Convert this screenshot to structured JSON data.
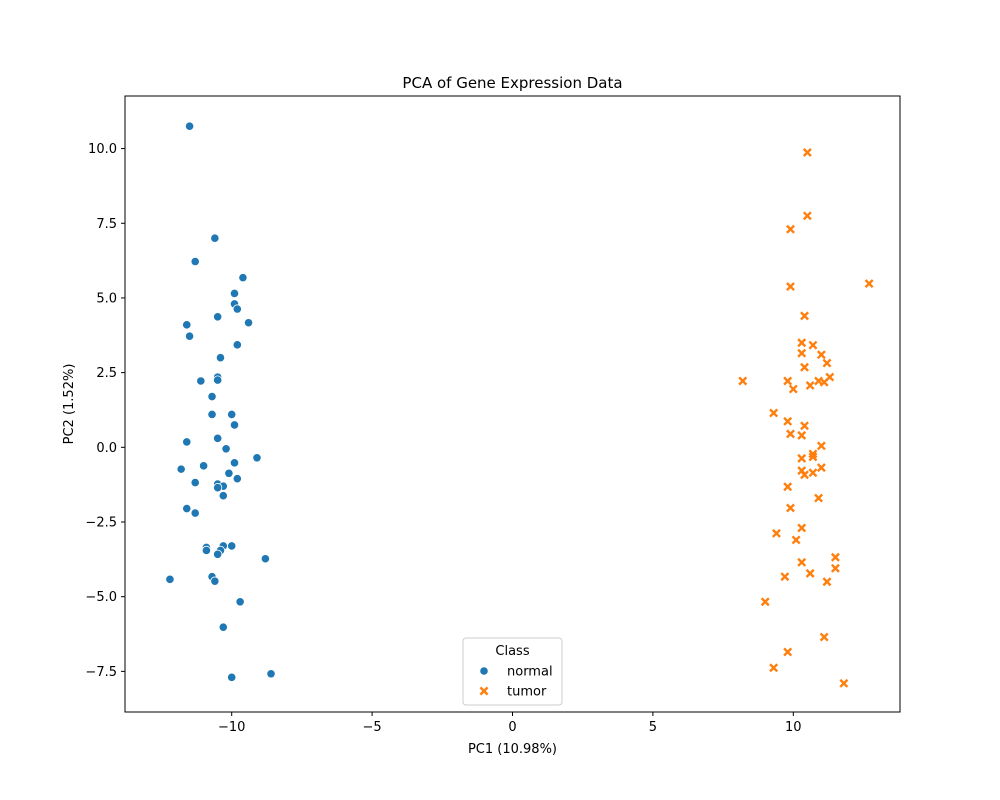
{
  "chart_data": {
    "type": "scatter",
    "title": "PCA of Gene Expression Data",
    "xlabel": "PC1 (10.98%)",
    "ylabel": "PC2 (1.52%)",
    "xlim": [
      -13.8,
      13.8
    ],
    "ylim": [
      -8.86,
      11.76
    ],
    "xticks": [
      -10,
      -5,
      0,
      5,
      10
    ],
    "xtick_labels": [
      "−10",
      "−5",
      "0",
      "5",
      "10"
    ],
    "yticks": [
      -7.5,
      -5.0,
      -2.5,
      0.0,
      2.5,
      5.0,
      7.5,
      10.0
    ],
    "ytick_labels": [
      "−7.5",
      "−5.0",
      "−2.5",
      "0.0",
      "2.5",
      "5.0",
      "7.5",
      "10.0"
    ],
    "grid": false,
    "legend": {
      "title": "Class",
      "placement": "bottom-center"
    },
    "series": [
      {
        "name": "normal",
        "marker": "circle",
        "color": "#1f77b4",
        "points": [
          [
            -11.5,
            10.75
          ],
          [
            -10.6,
            7.0
          ],
          [
            -11.3,
            6.22
          ],
          [
            -9.6,
            5.68
          ],
          [
            -9.9,
            5.15
          ],
          [
            -9.9,
            4.8
          ],
          [
            -9.8,
            4.63
          ],
          [
            -10.5,
            4.37
          ],
          [
            -11.6,
            4.1
          ],
          [
            -9.4,
            4.17
          ],
          [
            -11.5,
            3.72
          ],
          [
            -9.8,
            3.43
          ],
          [
            -10.4,
            3.0
          ],
          [
            -10.5,
            2.35
          ],
          [
            -11.1,
            2.22
          ],
          [
            -10.5,
            2.25
          ],
          [
            -10.7,
            1.7
          ],
          [
            -10.0,
            1.1
          ],
          [
            -10.7,
            1.1
          ],
          [
            -9.9,
            0.75
          ],
          [
            -10.5,
            0.3
          ],
          [
            -11.6,
            0.18
          ],
          [
            -10.2,
            -0.05
          ],
          [
            -9.1,
            -0.35
          ],
          [
            -9.9,
            -0.52
          ],
          [
            -11.0,
            -0.62
          ],
          [
            -11.8,
            -0.73
          ],
          [
            -10.1,
            -0.87
          ],
          [
            -9.8,
            -1.05
          ],
          [
            -11.3,
            -1.18
          ],
          [
            -10.5,
            -1.23
          ],
          [
            -10.3,
            -1.3
          ],
          [
            -10.5,
            -1.35
          ],
          [
            -10.3,
            -1.62
          ],
          [
            -11.6,
            -2.05
          ],
          [
            -11.3,
            -2.2
          ],
          [
            -10.0,
            -3.3
          ],
          [
            -10.3,
            -3.3
          ],
          [
            -10.9,
            -3.35
          ],
          [
            -10.9,
            -3.45
          ],
          [
            -10.4,
            -3.45
          ],
          [
            -10.5,
            -3.58
          ],
          [
            -8.8,
            -3.73
          ],
          [
            -10.7,
            -4.33
          ],
          [
            -10.6,
            -4.48
          ],
          [
            -12.2,
            -4.42
          ],
          [
            -9.7,
            -5.17
          ],
          [
            -10.3,
            -6.02
          ],
          [
            -8.6,
            -7.58
          ],
          [
            -10.0,
            -7.7
          ]
        ]
      },
      {
        "name": "tumor",
        "marker": "x",
        "color": "#ff7f0e",
        "points": [
          [
            10.5,
            9.87
          ],
          [
            10.5,
            7.75
          ],
          [
            9.9,
            7.3
          ],
          [
            12.7,
            5.48
          ],
          [
            9.9,
            5.38
          ],
          [
            10.4,
            4.4
          ],
          [
            10.3,
            3.5
          ],
          [
            10.7,
            3.42
          ],
          [
            10.3,
            3.15
          ],
          [
            11.0,
            3.1
          ],
          [
            11.2,
            2.82
          ],
          [
            10.4,
            2.68
          ],
          [
            11.3,
            2.35
          ],
          [
            8.2,
            2.22
          ],
          [
            9.8,
            2.22
          ],
          [
            10.9,
            2.22
          ],
          [
            11.1,
            2.18
          ],
          [
            10.6,
            2.07
          ],
          [
            10.0,
            1.95
          ],
          [
            9.3,
            1.15
          ],
          [
            9.8,
            0.87
          ],
          [
            10.4,
            0.72
          ],
          [
            9.9,
            0.45
          ],
          [
            10.3,
            0.4
          ],
          [
            11.0,
            0.05
          ],
          [
            10.7,
            -0.22
          ],
          [
            10.3,
            -0.37
          ],
          [
            10.7,
            -0.32
          ],
          [
            11.0,
            -0.68
          ],
          [
            10.3,
            -0.78
          ],
          [
            10.7,
            -0.85
          ],
          [
            10.4,
            -0.92
          ],
          [
            9.8,
            -1.32
          ],
          [
            10.9,
            -1.7
          ],
          [
            9.9,
            -2.03
          ],
          [
            10.3,
            -2.7
          ],
          [
            9.4,
            -2.88
          ],
          [
            10.1,
            -3.1
          ],
          [
            11.5,
            -3.68
          ],
          [
            10.3,
            -3.85
          ],
          [
            11.5,
            -4.05
          ],
          [
            10.6,
            -4.22
          ],
          [
            9.7,
            -4.33
          ],
          [
            11.2,
            -4.5
          ],
          [
            9.0,
            -5.17
          ],
          [
            11.1,
            -6.35
          ],
          [
            9.8,
            -6.85
          ],
          [
            9.3,
            -7.38
          ],
          [
            11.8,
            -7.9
          ]
        ]
      }
    ]
  }
}
